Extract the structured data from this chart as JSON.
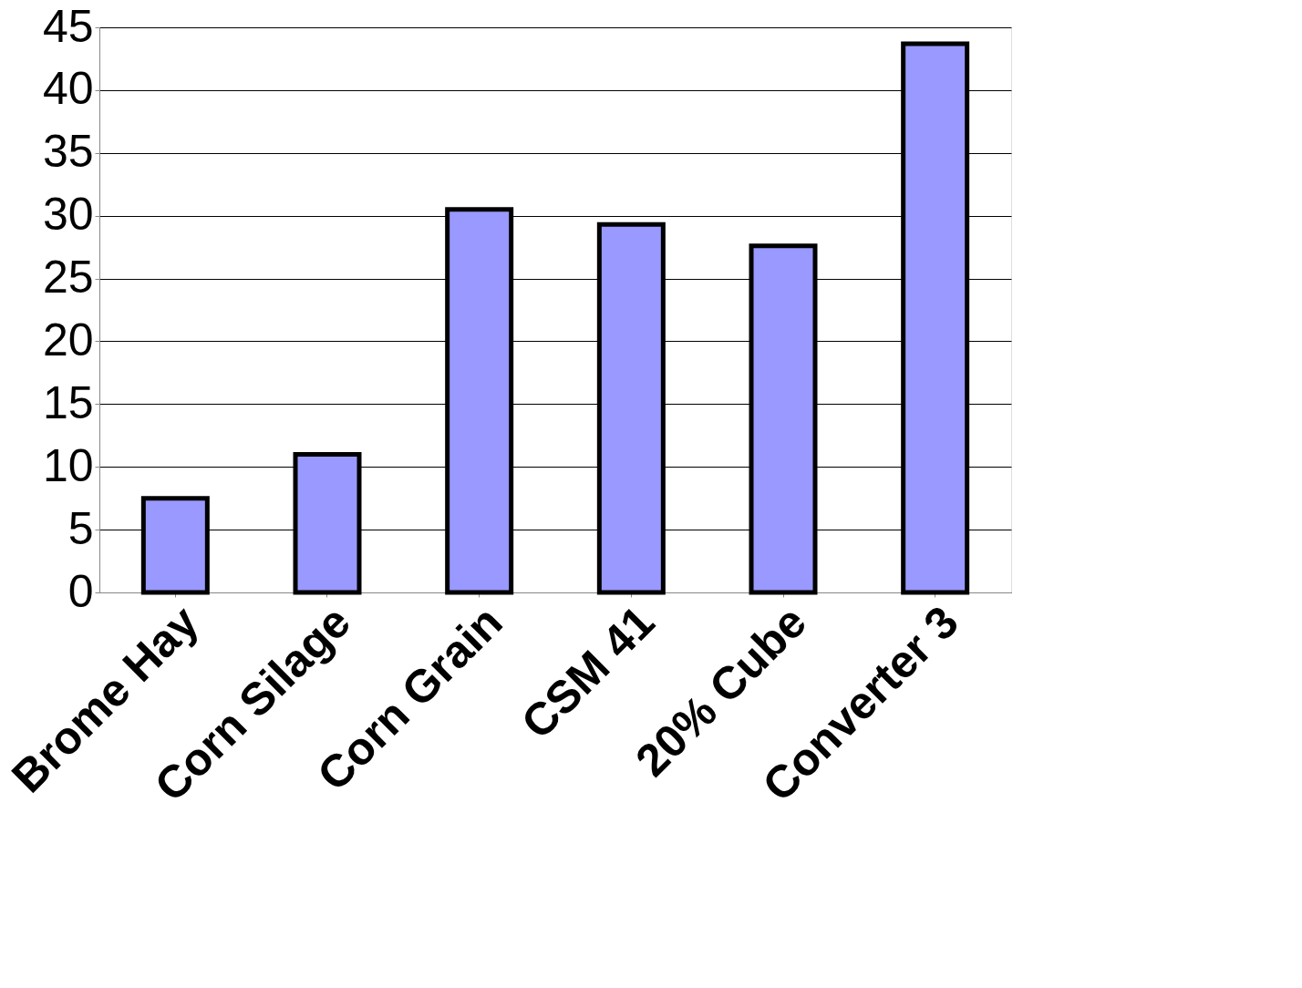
{
  "chart_data": {
    "type": "bar",
    "categories": [
      "Brome Hay",
      "Corn Silage",
      "Corn Grain",
      "CSM 41",
      "20% Cube",
      "Converter 3"
    ],
    "values": [
      7.5,
      11,
      30.5,
      29.3,
      27.6,
      43.7
    ],
    "color": "#9999ff",
    "ylim": [
      0,
      45
    ],
    "yticks": [
      0,
      5,
      10,
      15,
      20,
      25,
      30,
      35,
      40,
      45
    ],
    "grid": "y"
  }
}
